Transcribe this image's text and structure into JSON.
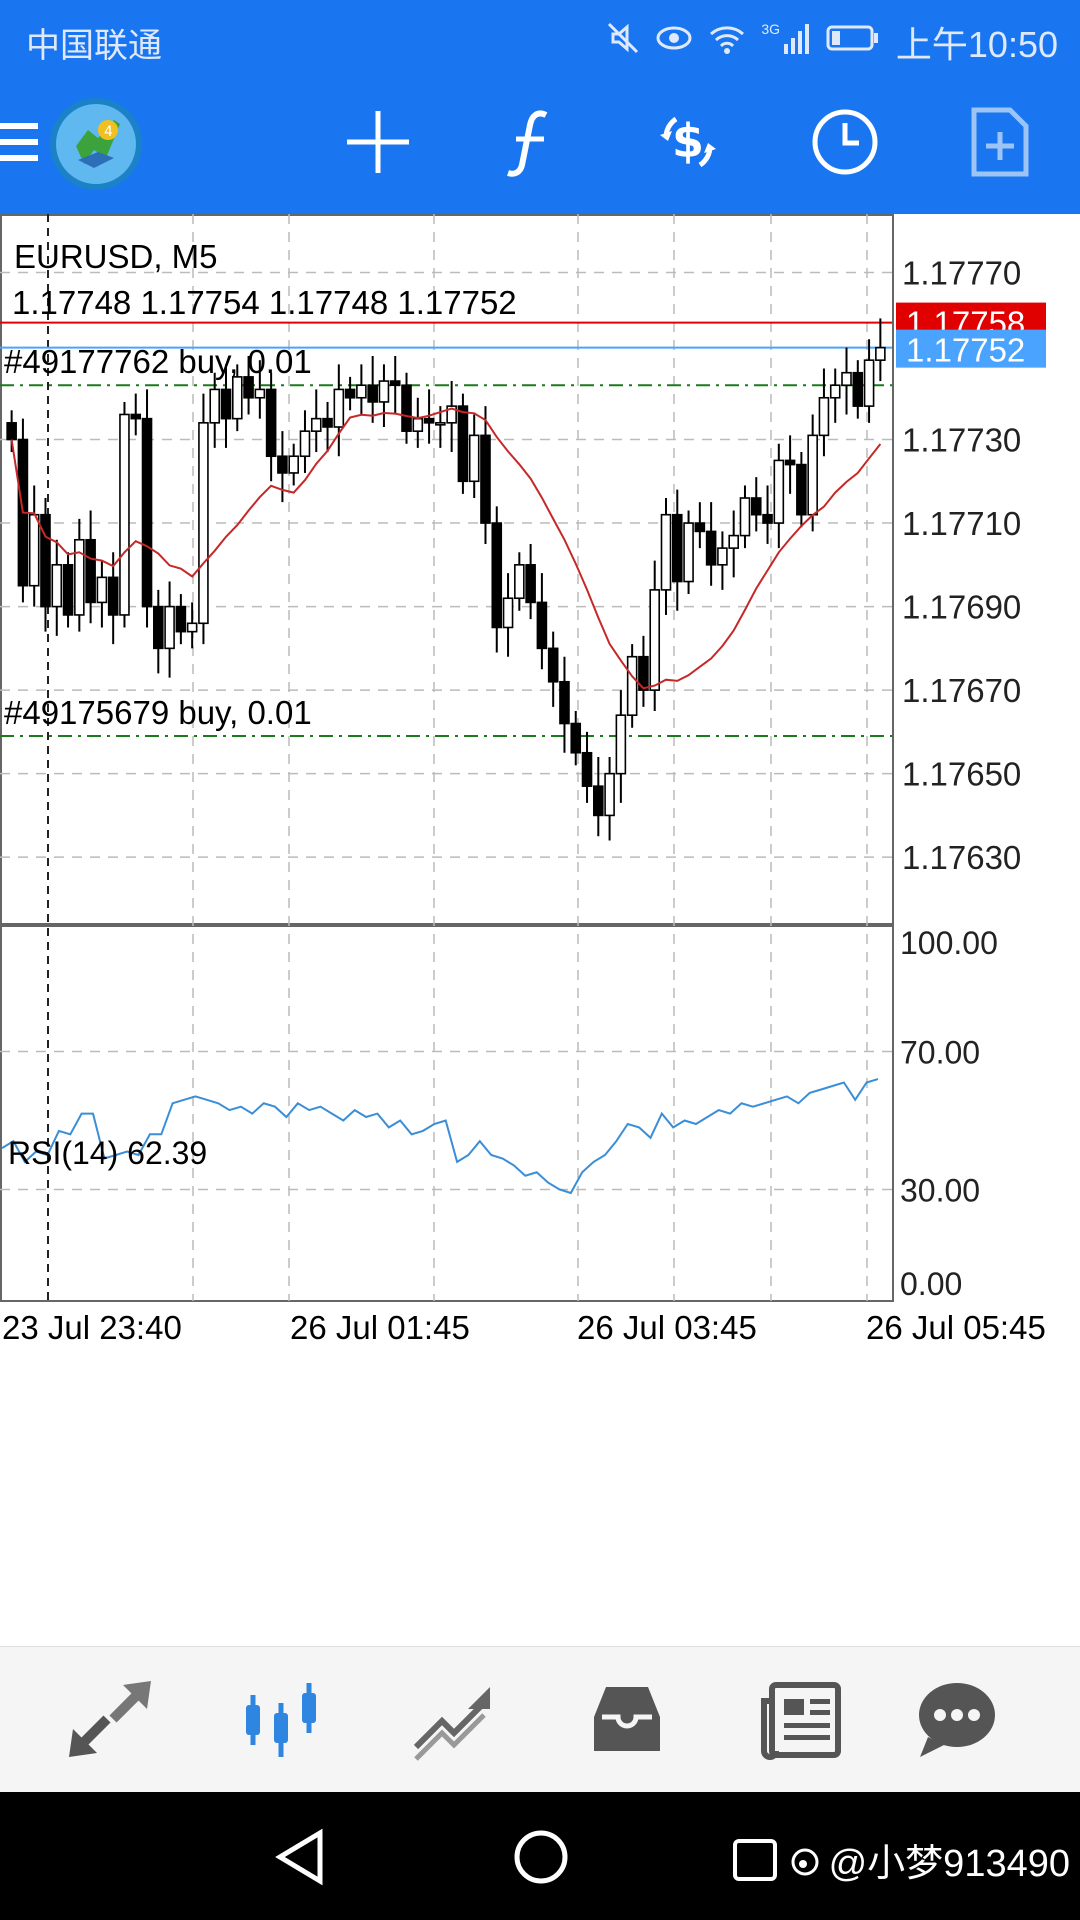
{
  "status_bar": {
    "carrier": "中国联通",
    "network": "3G",
    "time": "上午10:50"
  },
  "toolbar": {
    "icons": [
      "menu-icon",
      "metatrader-logo",
      "crosshair-icon",
      "indicators-icon",
      "trade-icon",
      "timeframe-icon",
      "new-order-icon"
    ]
  },
  "chart_data": {
    "type": "candlestick",
    "symbol_label": "EURUSD, M5",
    "ohlc_label": "1.17748 1.17754 1.17748 1.17752",
    "bid_label": "1.17752",
    "ask_label": "1.17758",
    "colors": {
      "bull": "#ffffff",
      "bear": "#000000",
      "ma": "#c62828",
      "ask": "#e00000",
      "bid": "#4aa3ff",
      "order": "#1b7a1b",
      "rsi": "#3a8ed8"
    },
    "price_axis": {
      "ticks": [
        "1.17770",
        "1.17730",
        "1.17710",
        "1.17690",
        "1.17670",
        "1.17650",
        "1.17630"
      ],
      "range": [
        1.17614,
        1.17784
      ]
    },
    "orders": [
      {
        "label": "#49177762 buy, 0.01",
        "price": 1.17743
      },
      {
        "label": "#49175679 buy, 0.01",
        "price": 1.17659
      }
    ],
    "closes": [
      1.1773,
      1.17695,
      1.17712,
      1.1769,
      1.177,
      1.17688,
      1.17706,
      1.17691,
      1.17697,
      1.17688,
      1.17736,
      1.17735,
      1.1769,
      1.1768,
      1.1769,
      1.17684,
      1.17686,
      1.17734,
      1.17742,
      1.17735,
      1.17745,
      1.1774,
      1.17742,
      1.17726,
      1.17722,
      1.17726,
      1.17732,
      1.17735,
      1.17733,
      1.17742,
      1.1774,
      1.17743,
      1.17739,
      1.17744,
      1.17743,
      1.17732,
      1.17735,
      1.17734,
      1.17734,
      1.17738,
      1.1772,
      1.17731,
      1.1771,
      1.17685,
      1.17692,
      1.177,
      1.17691,
      1.1768,
      1.17672,
      1.17662,
      1.17655,
      1.17647,
      1.1764,
      1.1765,
      1.17664,
      1.17678,
      1.1767,
      1.17694,
      1.17712,
      1.17696,
      1.1771,
      1.17708,
      1.177,
      1.17704,
      1.17707,
      1.17716,
      1.17712,
      1.1771,
      1.17725,
      1.17724,
      1.17712,
      1.17731,
      1.1774,
      1.17743,
      1.17746,
      1.17738,
      1.17749,
      1.17752
    ],
    "ma_period": 14,
    "rsi_label": "RSI(14) 62.39",
    "rsi_axis": {
      "ticks": [
        "100.00",
        "70.00",
        "30.00",
        "0.00"
      ]
    },
    "rsi_values": [
      42,
      44,
      38,
      41,
      40,
      47,
      46,
      52,
      52,
      39,
      40,
      41,
      40,
      46,
      46,
      55,
      56,
      57,
      56,
      55,
      53,
      54,
      52,
      55,
      54,
      51,
      55,
      53,
      54,
      52,
      50,
      53,
      51,
      52,
      48,
      50,
      46,
      47,
      49,
      50,
      38,
      40,
      44,
      40,
      39,
      37,
      34,
      35,
      32,
      30,
      29,
      35,
      38,
      40,
      44,
      49,
      48,
      45,
      52,
      48,
      50,
      49,
      51,
      53,
      52,
      55,
      54,
      55,
      56,
      57,
      55,
      58,
      59,
      60,
      61,
      56,
      61,
      62
    ],
    "time_labels": [
      "23 Jul 23:40",
      "26 Jul 01:45",
      "26 Jul 03:45",
      "26 Jul 05:45"
    ]
  },
  "bottom_nav": {
    "items": [
      "quotes-icon",
      "chart-icon",
      "trade-icon",
      "history-icon",
      "news-icon",
      "chat-icon"
    ],
    "active": 1
  },
  "watermark": "@小梦913490"
}
